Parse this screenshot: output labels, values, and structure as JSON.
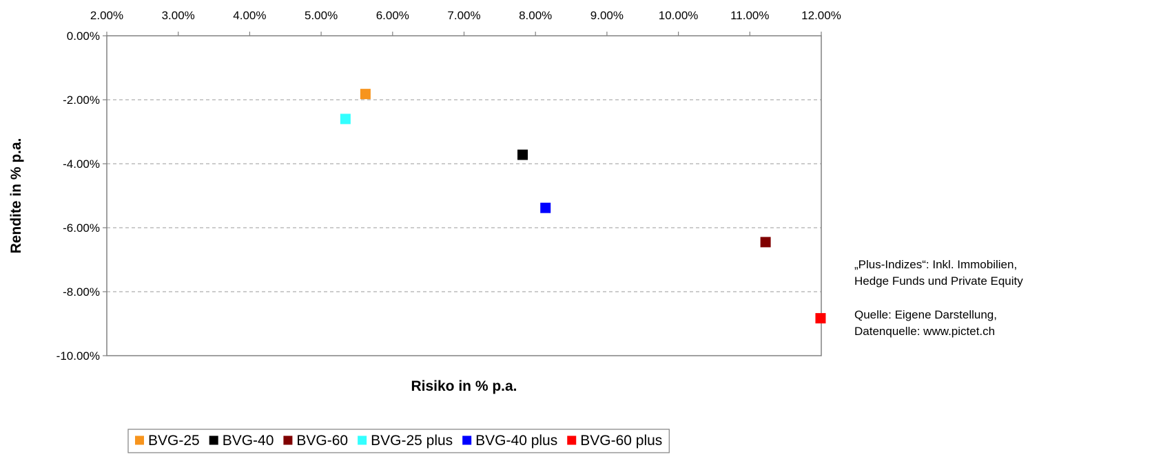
{
  "chart_data": {
    "type": "scatter",
    "xlabel": "Risiko in % p.a.",
    "ylabel": "Rendite in % p.a.",
    "xlim": [
      2.0,
      12.0
    ],
    "ylim": [
      -10.0,
      0.0
    ],
    "x_axis_position": "top",
    "x_ticks": [
      "2.00%",
      "3.00%",
      "4.00%",
      "5.00%",
      "6.00%",
      "7.00%",
      "8.00%",
      "9.00%",
      "10.00%",
      "11.00%",
      "12.00%"
    ],
    "y_ticks": [
      "0.00%",
      "-2.00%",
      "-4.00%",
      "-6.00%",
      "-8.00%",
      "-10.00%"
    ],
    "grid": "horizontal dashed",
    "legend_position": "bottom",
    "series": [
      {
        "name": "BVG-25",
        "color": "#F7941D",
        "x": 5.62,
        "y": -1.82
      },
      {
        "name": "BVG-40",
        "color": "#000000",
        "x": 7.82,
        "y": -3.72
      },
      {
        "name": "BVG-60",
        "color": "#800000",
        "x": 11.22,
        "y": -6.45
      },
      {
        "name": "BVG-25 plus",
        "color": "#33FFFF",
        "x": 5.34,
        "y": -2.6
      },
      {
        "name": "BVG-40 plus",
        "color": "#0000FF",
        "x": 8.14,
        "y": -5.38
      },
      {
        "name": "BVG-60 plus",
        "color": "#FF0000",
        "x": 11.99,
        "y": -8.83
      }
    ]
  },
  "notes": {
    "note1_line1": "„Plus-Indizes“: Inkl. Immobilien,",
    "note1_line2": "Hedge Funds und Private Equity",
    "note2_line1": "Quelle: Eigene Darstellung,",
    "note2_line2": "Datenquelle: www.pictet.ch"
  }
}
